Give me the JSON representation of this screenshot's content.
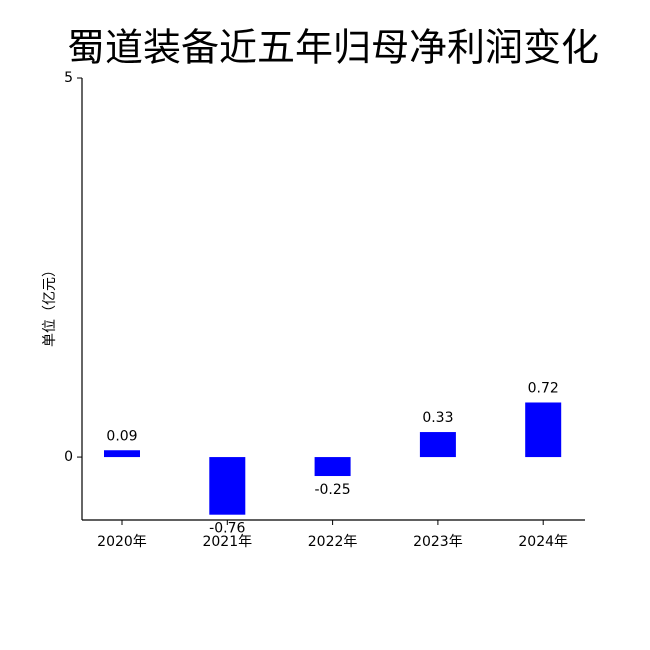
{
  "chart_data": {
    "type": "bar",
    "title": "蜀道装备近五年归母净利润变化",
    "y_label": "单位（亿元）",
    "categories": [
      "2020年",
      "2021年",
      "2022年",
      "2023年",
      "2024年"
    ],
    "values": [
      0.09,
      -0.76,
      -0.25,
      0.33,
      0.72
    ],
    "color": "#0000ff",
    "ylim": [
      -0.83,
      5
    ],
    "yticks": [
      0,
      5
    ],
    "grid": false
  }
}
